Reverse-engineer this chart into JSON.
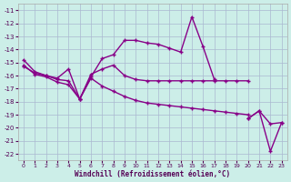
{
  "xlabel": "Windchill (Refroidissement éolien,°C)",
  "xlim": [
    -0.5,
    23.5
  ],
  "ylim": [
    -22.5,
    -10.5
  ],
  "yticks": [
    -22,
    -21,
    -20,
    -19,
    -18,
    -17,
    -16,
    -15,
    -14,
    -13,
    -12,
    -11
  ],
  "xticks": [
    0,
    1,
    2,
    3,
    4,
    5,
    6,
    7,
    8,
    9,
    10,
    11,
    12,
    13,
    14,
    15,
    16,
    17,
    18,
    19,
    20,
    21,
    22,
    23
  ],
  "background_color": "#cceee8",
  "grid_color": "#aab8d0",
  "line_color": "#880088",
  "tick_color": "#550055",
  "series": [
    {
      "x": [
        0,
        1,
        2,
        3,
        4,
        5,
        6,
        7,
        8,
        9,
        10,
        11,
        12,
        13,
        14,
        15,
        16,
        17
      ],
      "y": [
        -14.8,
        -15.7,
        -16.0,
        -16.2,
        -15.5,
        -17.8,
        -16.1,
        -14.7,
        -14.4,
        -13.3,
        -13.3,
        -13.5,
        -13.6,
        -13.9,
        -14.2,
        -11.5,
        -13.8,
        -16.3
      ]
    },
    {
      "x": [
        0,
        1,
        2,
        3,
        4,
        5,
        6,
        7,
        8,
        9,
        10,
        11,
        12,
        13,
        14,
        15,
        16,
        17,
        18,
        19,
        20
      ],
      "y": [
        -15.3,
        -15.8,
        -16.0,
        -16.3,
        -16.4,
        -17.8,
        -15.9,
        -15.5,
        -15.2,
        -16.0,
        -16.3,
        -16.4,
        -16.4,
        -16.4,
        -16.4,
        -16.4,
        -16.4,
        -16.4,
        -16.4,
        -16.4,
        -16.4
      ]
    },
    {
      "x": [
        0,
        1,
        2,
        3,
        4,
        5,
        6,
        7,
        8,
        9,
        10,
        11,
        12,
        13,
        14,
        15,
        16,
        17,
        18,
        19,
        20
      ],
      "y": [
        -15.2,
        -15.9,
        -16.1,
        -16.5,
        -16.7,
        -17.8,
        -16.2,
        -16.8,
        -17.2,
        -17.6,
        -17.9,
        -18.1,
        -18.2,
        -18.3,
        -18.4,
        -18.5,
        -18.6,
        -18.7,
        -18.8,
        -18.9,
        -19.0
      ]
    },
    {
      "x": [
        20,
        21,
        22,
        23
      ],
      "y": [
        -19.3,
        -18.7,
        -21.8,
        -19.6
      ]
    },
    {
      "x": [
        20,
        21,
        22,
        23
      ],
      "y": [
        -19.3,
        -18.7,
        -19.7,
        -19.6
      ]
    }
  ]
}
